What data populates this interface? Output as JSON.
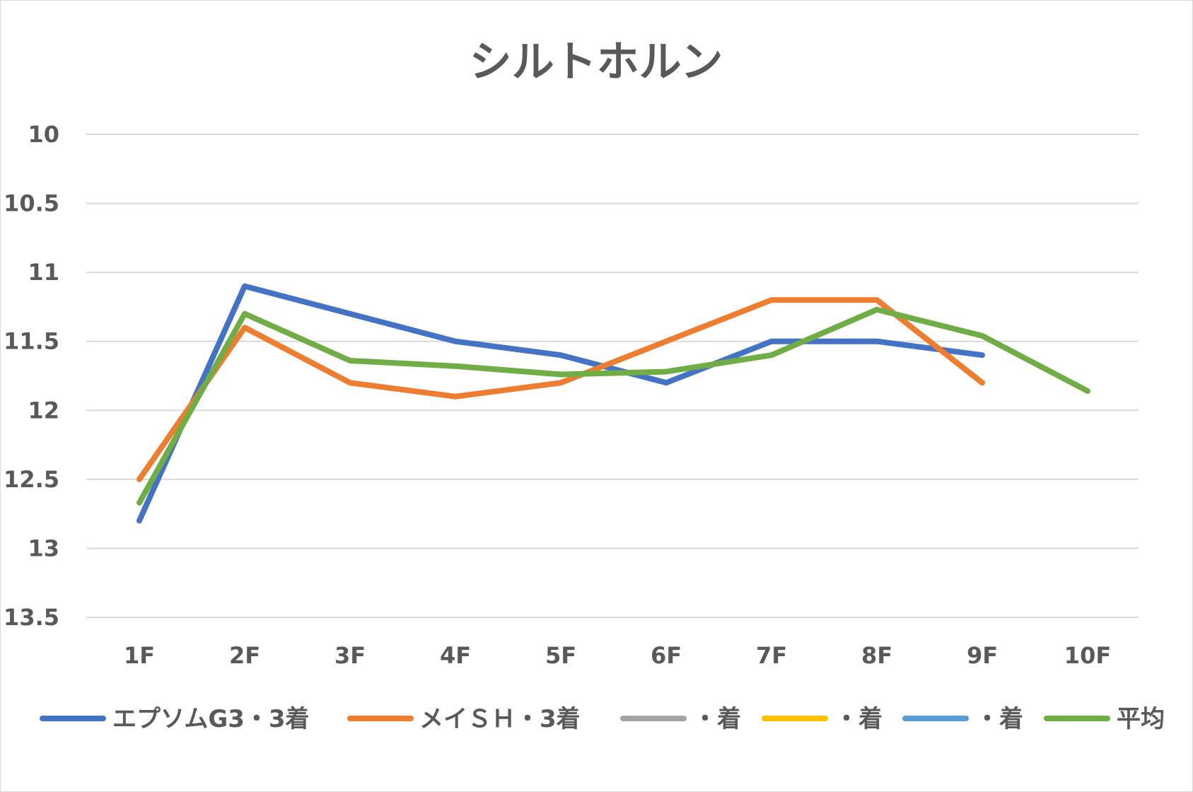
{
  "chart_data": {
    "type": "line",
    "title": "シルトホルン",
    "categories": [
      "1F",
      "2F",
      "3F",
      "4F",
      "5F",
      "6F",
      "7F",
      "8F",
      "9F",
      "10F"
    ],
    "y_ticks": [
      "10",
      "10.5",
      "11",
      "11.5",
      "12",
      "12.5",
      "13",
      "13.5"
    ],
    "ylim": [
      10,
      13.5
    ],
    "y_reversed": true,
    "grid": true,
    "legend_position": "bottom",
    "series": [
      {
        "name": "エプソムG3・3着",
        "color": "#4472c4",
        "values": [
          12.8,
          11.1,
          11.3,
          11.5,
          11.6,
          11.8,
          11.5,
          11.5,
          11.6,
          null
        ]
      },
      {
        "name": "メイＳＨ・3着",
        "color": "#ed7d31",
        "values": [
          12.5,
          11.4,
          11.8,
          11.9,
          11.8,
          11.5,
          11.2,
          11.2,
          11.8,
          null
        ]
      },
      {
        "name": "・着",
        "color": "#a5a5a5",
        "values": [
          null,
          null,
          null,
          null,
          null,
          null,
          null,
          null,
          null,
          null
        ]
      },
      {
        "name": "・着",
        "color": "#ffc000",
        "values": [
          null,
          null,
          null,
          null,
          null,
          null,
          null,
          null,
          null,
          null
        ]
      },
      {
        "name": "・着",
        "color": "#5b9bd5",
        "values": [
          null,
          null,
          null,
          null,
          null,
          null,
          null,
          null,
          null,
          null
        ]
      },
      {
        "name": "平均",
        "color": "#70ad47",
        "values": [
          12.67,
          11.3,
          11.64,
          11.68,
          11.74,
          11.72,
          11.6,
          11.27,
          11.46,
          11.86
        ]
      }
    ]
  }
}
